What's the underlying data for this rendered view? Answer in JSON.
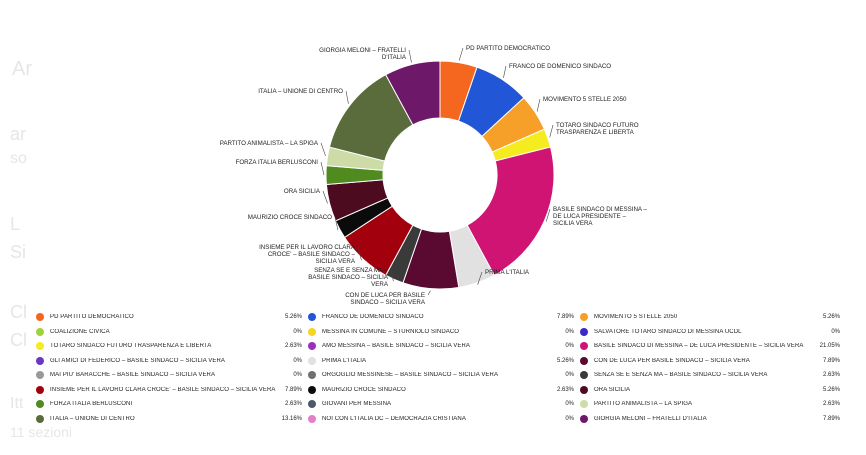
{
  "chart_data": {
    "type": "pie",
    "style": "donut",
    "legend_position": "bottom",
    "slices": [
      {
        "label": "PD PARTITO DEMOCRATICO",
        "value": 5.26,
        "display": "5.26%",
        "color": "#f5661f"
      },
      {
        "label": "FRANCO DE DOMENICO SINDACO",
        "value": 7.89,
        "display": "7.89%",
        "color": "#2157d6"
      },
      {
        "label": "MOVIMENTO 5 STELLE 2050",
        "value": 5.26,
        "display": "5.26%",
        "color": "#f6a02a"
      },
      {
        "label": "TOTARO SINDACO FUTURO TRASPARENZA E LIBERTA",
        "value": 2.63,
        "display": "2.63%",
        "color": "#f5ec1f"
      },
      {
        "label": "BASILE SINDACO DI MESSINA – DE LUCA PRESIDENTE – SICILIA VERA",
        "value": 21.05,
        "display": "21.05%",
        "color": "#cf1473"
      },
      {
        "label": "PRIMA L'ITALIA",
        "value": 5.26,
        "display": "5.26%",
        "color": "#e1e1e1"
      },
      {
        "label": "CON DE LUCA PER BASILE SINDACO – SICILIA VERA",
        "value": 7.89,
        "display": "7.89%",
        "color": "#5a0a30"
      },
      {
        "label": "SENZA SE E SENZA MA – BASILE SINDACO – SICILIA VERA",
        "value": 2.63,
        "display": "2.63%",
        "color": "#3a3a3a"
      },
      {
        "label": "INSIEME PER IL LAVORO CLARA CROCE' – BASILE SINDACO – SICILIA VERA",
        "value": 7.89,
        "display": "7.89%",
        "color": "#a3000e"
      },
      {
        "label": "MAURIZIO CROCE SINDACO",
        "value": 2.63,
        "display": "2.63%",
        "color": "#0b0b0b"
      },
      {
        "label": "ORA SICILIA",
        "value": 5.26,
        "display": "5.26%",
        "color": "#4d0b20"
      },
      {
        "label": "FORZA ITALIA BERLUSCONI",
        "value": 2.63,
        "display": "2.63%",
        "color": "#4f8b1e"
      },
      {
        "label": "PARTITO ANIMALISTA – LA SPIGA",
        "value": 2.63,
        "display": "2.63%",
        "color": "#cddca7"
      },
      {
        "label": "ITALIA – UNIONE DI CENTRO",
        "value": 13.16,
        "display": "13.16%",
        "color": "#5a6b3c"
      },
      {
        "label": "GIORGIA MELONI – FRATELLI D'ITALIA",
        "value": 7.89,
        "display": "7.89%",
        "color": "#6d1868"
      }
    ],
    "slice_labels": [
      {
        "lines": [
          "PD PARTITO DEMOCRATICO"
        ]
      },
      {
        "lines": [
          "FRANCO DE DOMENICO SINDACO"
        ]
      },
      {
        "lines": [
          "MOVIMENTO 5 STELLE 2050"
        ]
      },
      {
        "lines": [
          "TOTARO SINDACO FUTURO",
          "TRASPARENZA E LIBERTA"
        ]
      },
      {
        "lines": [
          "BASILE SINDACO DI MESSINA –",
          "DE LUCA PRESIDENTE –",
          "SICILIA VERA"
        ]
      },
      {
        "lines": [
          "PRIMA L'ITALIA"
        ]
      },
      {
        "lines": [
          "CON DE LUCA PER BASILE",
          "SINDACO – SICILIA VERA"
        ]
      },
      {
        "lines": [
          "SENZA SE E SENZA MA –",
          "BASILE SINDACO – SICILIA",
          "VERA"
        ]
      },
      {
        "lines": [
          "INSIEME PER IL LAVORO CLARA",
          "CROCE' – BASILE SINDACO –",
          "SICILIA VERA"
        ]
      },
      {
        "lines": [
          "MAURIZIO CROCE SINDACO"
        ]
      },
      {
        "lines": [
          "ORA SICILIA"
        ]
      },
      {
        "lines": [
          "FORZA ITALIA BERLUSCONI"
        ]
      },
      {
        "lines": [
          "PARTITO ANIMALISTA – LA SPIGA"
        ]
      },
      {
        "lines": [
          "ITALIA – UNIONE DI CENTRO"
        ]
      },
      {
        "lines": [
          "GIORGIA MELONI – FRATELLI",
          "D'ITALIA"
        ]
      }
    ],
    "legend": [
      {
        "label": "PD PARTITO DEMOCRATICO",
        "value": "5.26%",
        "color": "#f5661f"
      },
      {
        "label": "FRANCO DE DOMENICO SINDACO",
        "value": "7.89%",
        "color": "#2157d6"
      },
      {
        "label": "MOVIMENTO 5 STELLE 2050",
        "value": "5.26%",
        "color": "#f6a02a"
      },
      {
        "label": "COALIZIONE CIVICA",
        "value": "0%",
        "color": "#9ed13a"
      },
      {
        "label": "MESSINA IN COMUNE – STURNIOLO SINDACO",
        "value": "0%",
        "color": "#f5d51f"
      },
      {
        "label": "SALVATORE TOTARO SINDACO DI MESSINA UCDL",
        "value": "0%",
        "color": "#3a28c9"
      },
      {
        "label": "TOTARO SINDACO FUTURO TRASPARENZA E LIBERTA",
        "value": "2.63%",
        "color": "#f5ec1f"
      },
      {
        "label": "AMO MESSINA – BASILE SINDACO – SICILIA VERA",
        "value": "0%",
        "color": "#9b2fc0"
      },
      {
        "label": "BASILE SINDACO DI MESSINA – DE LUCA PRESIDENTE – SICILIA VERA",
        "value": "21.05%",
        "color": "#cf1473"
      },
      {
        "label": "GLI AMICI DI FEDERICO – BASILE SINDACO – SICILIA VERA",
        "value": "0%",
        "color": "#6b38c4"
      },
      {
        "label": "PRIMA L'ITALIA",
        "value": "5.26%",
        "color": "#e1e1e1"
      },
      {
        "label": "CON DE LUCA PER BASILE SINDACO – SICILIA VERA",
        "value": "7.89%",
        "color": "#5a0a30"
      },
      {
        "label": "MAI PIU' BARACCHE – BASILE SINDACO – SICILIA VERA",
        "value": "0%",
        "color": "#9a9a9a"
      },
      {
        "label": "ORGOGLIO MESSINESE – BASILE SINDACO – SICILIA VERA",
        "value": "0%",
        "color": "#6f6f6f"
      },
      {
        "label": "SENZA SE E SENZA MA – BASILE SINDACO – SICILIA VERA",
        "value": "2.63%",
        "color": "#3a3a3a"
      },
      {
        "label": "INSIEME PER IL LAVORO CLARA CROCE' – BASILE SINDACO – SICILIA VERA",
        "value": "7.89%",
        "color": "#a3000e"
      },
      {
        "label": "MAURIZIO CROCE SINDACO",
        "value": "2.63%",
        "color": "#0b0b0b"
      },
      {
        "label": "ORA SICILIA",
        "value": "5.26%",
        "color": "#4d0b20"
      },
      {
        "label": "FORZA ITALIA BERLUSCONI",
        "value": "2.63%",
        "color": "#4f8b1e"
      },
      {
        "label": "GIOVANI PER MESSINA",
        "value": "0%",
        "color": "#4a5a6a"
      },
      {
        "label": "PARTITO ANIMALISTA – LA SPIGA",
        "value": "2.63%",
        "color": "#cddca7"
      },
      {
        "label": "ITALIA – UNIONE DI CENTRO",
        "value": "13.16%",
        "color": "#5a6b3c"
      },
      {
        "label": "NOI CON L'ITALIA DC – DEMOCRAZIA CRISTIANA",
        "value": "0%",
        "color": "#e47fc8"
      },
      {
        "label": "GIORGIA MELONI – FRATELLI D'ITALIA",
        "value": "7.89%",
        "color": "#6d1868"
      }
    ]
  },
  "background_text": [
    {
      "text": "Ar"
    },
    {
      "text": "ar"
    },
    {
      "text": "so"
    },
    {
      "text": "L"
    },
    {
      "text": "Si"
    },
    {
      "text": "Cl"
    },
    {
      "text": "Cl"
    },
    {
      "text": "Itt"
    },
    {
      "text": "11 sezioni"
    }
  ]
}
